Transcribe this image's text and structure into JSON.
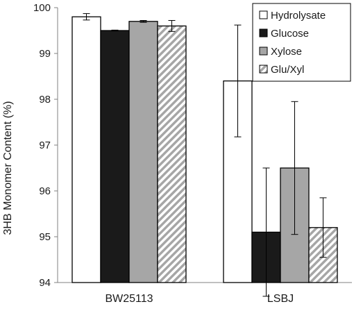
{
  "chart_data": {
    "type": "bar",
    "ylabel": "3HB Monomer Content (%)",
    "ylim": [
      94,
      100
    ],
    "yticks": [
      94,
      95,
      96,
      97,
      98,
      99,
      100
    ],
    "grid": false,
    "legend_position": "top-right",
    "categories": [
      "BW25113",
      "LSBJ"
    ],
    "series": [
      {
        "name": "Hydrolysate",
        "fill": "#ffffff",
        "pattern": "none",
        "values": [
          99.8,
          98.4
        ],
        "errors": [
          0.07,
          1.22
        ]
      },
      {
        "name": "Glucose",
        "fill": "#1a1a1a",
        "pattern": "none",
        "values": [
          99.5,
          95.1
        ],
        "errors": [
          0.01,
          1.4
        ]
      },
      {
        "name": "Xylose",
        "fill": "#a6a6a6",
        "pattern": "none",
        "values": [
          99.7,
          96.5
        ],
        "errors": [
          0.02,
          1.45
        ]
      },
      {
        "name": "Glu/Xyl",
        "fill": "#ffffff",
        "pattern": "diagonal-hatch",
        "values": [
          99.6,
          95.2
        ],
        "errors": [
          0.12,
          0.65
        ]
      }
    ]
  }
}
